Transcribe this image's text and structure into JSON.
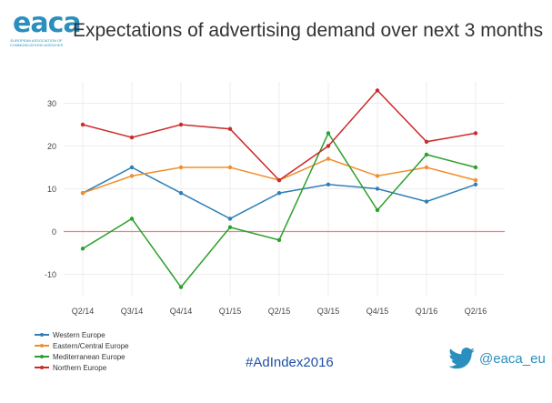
{
  "logo": {
    "text": "eaca",
    "subtitle": "EUROPEAN ASSOCIATION OF COMMUNICATIONS AGENCIES"
  },
  "hashtag": "#AdIndex2016",
  "twitter_handle": "@eaca_eu",
  "colors": {
    "western": "#2f7fb6",
    "eastern": "#f28e2b",
    "mediterranean": "#2ca02c",
    "northern": "#cc2a2a",
    "zero_line": "#f08080",
    "twitter": "#2a8fbd"
  },
  "chart_data": {
    "type": "line",
    "title": "Expectations of advertising demand over next 3 months",
    "categories": [
      "Q2/14",
      "Q3/14",
      "Q4/14",
      "Q1/15",
      "Q2/15",
      "Q3/15",
      "Q4/15",
      "Q1/16",
      "Q2/16"
    ],
    "series": [
      {
        "name": "Western Europe",
        "color": "#2f7fb6",
        "values": [
          9,
          15,
          9,
          3,
          9,
          11,
          10,
          7,
          11
        ]
      },
      {
        "name": "Eastern/Central Europe",
        "color": "#f28e2b",
        "values": [
          9,
          13,
          15,
          15,
          12,
          17,
          13,
          15,
          12
        ]
      },
      {
        "name": "Mediterranean Europe",
        "color": "#2ca02c",
        "values": [
          -4,
          3,
          -13,
          1,
          -2,
          23,
          5,
          18,
          15
        ]
      },
      {
        "name": "Northern Europe",
        "color": "#cc2a2a",
        "values": [
          25,
          22,
          25,
          24,
          12,
          20,
          33,
          21,
          23
        ]
      }
    ],
    "yticks": [
      -10,
      0,
      10,
      20,
      30
    ],
    "ylim": [
      -15,
      35
    ],
    "grid": true,
    "zero_line": true,
    "legend_position": "bottom-left"
  }
}
